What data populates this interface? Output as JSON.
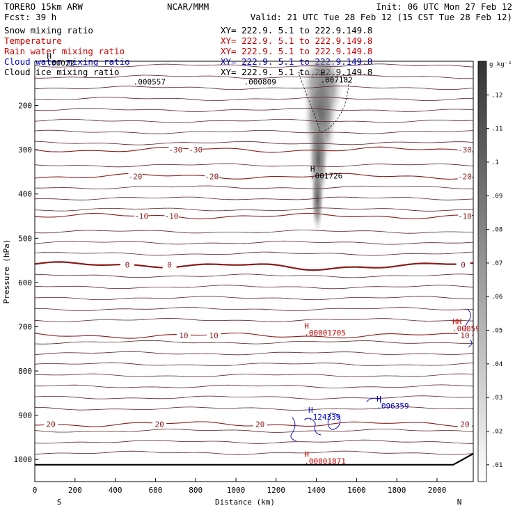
{
  "header": {
    "model": "TORERO  15km ARW",
    "org": "NCAR/MMM",
    "init": "Init: 06 UTC Mon 27 Feb 12",
    "fcst": "Fcst:   39 h",
    "valid": "Valid: 21 UTC Tue 28 Feb 12 (15 CST Tue 28 Feb 12)"
  },
  "fields": [
    {
      "name": "Snow mixing ratio",
      "xy": "XY= 222.9.  5.1 to 222.9.149.8",
      "color": "#000000"
    },
    {
      "name": "Temperature",
      "xy": "XY= 222.9.  5.1 to 222.9.149.8",
      "color": "#cc0000"
    },
    {
      "name": "Rain water mixing ratio",
      "xy": "XY= 222.9.  5.1 to 222.9.149.8",
      "color": "#cc0000"
    },
    {
      "name": "Cloud water mixing ratio",
      "xy": "XY= 222.9.  5.1 to 222.9.149.8",
      "color": "#0000cc"
    },
    {
      "name": "Cloud ice mixing ratio",
      "xy": "XY= 222.9.  5.1 to 222.9.149.8",
      "color": "#000000"
    }
  ],
  "chart_data": {
    "type": "heatmap",
    "xlabel": "Distance (km)",
    "ylabel": "Pressure (hPa)",
    "xlim": [
      0,
      2180
    ],
    "ylim": [
      1050,
      100
    ],
    "x_ticks": [
      0,
      200,
      400,
      600,
      800,
      1000,
      1200,
      1400,
      1600,
      1800,
      2000
    ],
    "y_ticks": [
      200,
      300,
      400,
      500,
      600,
      700,
      800,
      900,
      1000
    ],
    "x_end_labels": {
      "left": "S",
      "right": "N"
    },
    "colorbar": {
      "unit": "g kg⁻¹",
      "ticks": [
        0.01,
        0.02,
        0.03,
        0.04,
        0.05,
        0.06,
        0.07,
        0.08,
        0.09,
        0.1,
        0.11,
        0.12
      ],
      "tick_labels": [
        ".01",
        ".02",
        ".03",
        ".04",
        ".05",
        ".06",
        ".07",
        ".08",
        ".09",
        ".1",
        ".11",
        ".12"
      ],
      "range": [
        0.005,
        0.13
      ]
    },
    "isotherms": [
      {
        "label": "-30",
        "label_x": [
          700,
          800,
          2220
        ]
      },
      {
        "label": "-20",
        "label_x": [
          500,
          880,
          2140
        ]
      },
      {
        "label": "-10",
        "label_x": [
          530,
          680,
          2140
        ]
      },
      {
        "label": "0",
        "label_x": [
          460,
          670,
          2130
        ]
      },
      {
        "label": "10",
        "label_x": [
          740,
          890,
          2140
        ]
      },
      {
        "label": "20",
        "label_x": [
          80,
          620,
          1120,
          2270
        ]
      }
    ],
    "temperature_isotherm_labels": [
      "-30",
      "-30",
      "-30",
      "-20",
      "-20",
      "-20",
      "-10",
      "-10",
      "-10",
      "0",
      "0",
      "0",
      "10",
      "10",
      "10",
      "20",
      "20",
      "20",
      "20"
    ],
    "annotations": [
      {
        "x": 1420,
        "p": 148,
        "marker": "H",
        "value": ".007182",
        "field": "Snow mixing ratio",
        "color": "#000000"
      },
      {
        "x": 1370,
        "p": 365,
        "marker": "H",
        "value": ".001726",
        "field": "Snow mixing ratio",
        "color": "#000000"
      },
      {
        "x": 490,
        "p": 153,
        "marker": "",
        "value": ".000557",
        "field": "Cloud ice mixing ratio",
        "color": "#000000"
      },
      {
        "x": 1040,
        "p": 153,
        "marker": "",
        "value": ".000809",
        "field": "Cloud ice mixing ratio",
        "color": "#000000"
      },
      {
        "x": 60,
        "p": 110,
        "marker": "H",
        "value": ".00022",
        "field": "Cloud ice mixing ratio",
        "color": "#000000"
      },
      {
        "x": 1340,
        "p": 720,
        "marker": "H",
        "value": ".00001705",
        "field": "Rain water mixing ratio",
        "color": "#cc0000"
      },
      {
        "x": 1340,
        "p": 1010,
        "marker": "H",
        "value": ".00001871",
        "field": "Rain water mixing ratio",
        "color": "#cc0000"
      },
      {
        "x": 2120,
        "p": 710,
        "marker": "HH",
        "value": ".00059",
        "field": "Rain water mixing ratio",
        "color": "#cc0000"
      },
      {
        "x": 1360,
        "p": 910,
        "marker": "H",
        "value": ".124339",
        "field": "Cloud water mixing ratio",
        "color": "#0000cc"
      },
      {
        "x": 1700,
        "p": 885,
        "marker": "H",
        "value": ".096359",
        "field": "Cloud water mixing ratio",
        "color": "#0000cc"
      }
    ],
    "snow_max": 0.11
  }
}
